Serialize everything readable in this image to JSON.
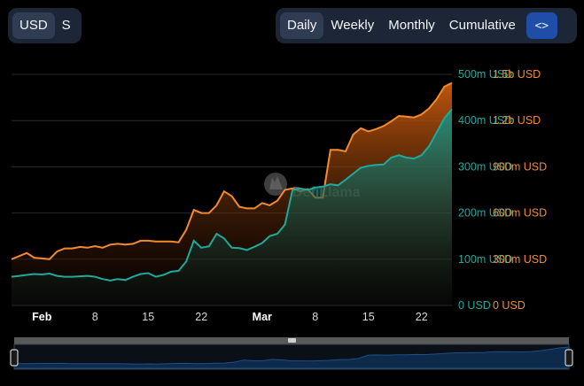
{
  "toolbar": {
    "currency": {
      "options": [
        "USD",
        "S"
      ],
      "selected": "USD"
    },
    "period": {
      "options": [
        "Daily",
        "Weekly",
        "Monthly",
        "Cumulative"
      ],
      "selected": "Daily"
    },
    "embed_icon": "code-brackets-icon",
    "embed_glyph": "<>"
  },
  "watermark": {
    "text": "DefiLlama",
    "icon": "llama-logo"
  },
  "colors": {
    "background": "#000000",
    "series_orange": "#f28a2e",
    "series_teal": "#20a89c",
    "grid": "#2a2a2a",
    "slider": "#1f4da8"
  },
  "chart_data": {
    "type": "area",
    "x": [
      "Jan 28",
      "Jan 29",
      "Jan 30",
      "Jan 31",
      "Feb 1",
      "Feb 2",
      "Feb 3",
      "Feb 4",
      "Feb 5",
      "Feb 6",
      "Feb 7",
      "Feb 8",
      "Feb 9",
      "Feb 10",
      "Feb 11",
      "Feb 12",
      "Feb 13",
      "Feb 14",
      "Feb 15",
      "Feb 16",
      "Feb 17",
      "Feb 18",
      "Feb 19",
      "Feb 20",
      "Feb 21",
      "Feb 22",
      "Feb 23",
      "Feb 24",
      "Feb 25",
      "Feb 26",
      "Feb 27",
      "Feb 28",
      "Feb 29",
      "Mar 1",
      "Mar 2",
      "Mar 3",
      "Mar 4",
      "Mar 5",
      "Mar 6",
      "Mar 7",
      "Mar 8",
      "Mar 9",
      "Mar 10",
      "Mar 11",
      "Mar 12",
      "Mar 13",
      "Mar 14",
      "Mar 15",
      "Mar 16",
      "Mar 17",
      "Mar 18",
      "Mar 19",
      "Mar 20",
      "Mar 21",
      "Mar 22",
      "Mar 23",
      "Mar 24",
      "Mar 25",
      "Mar 26"
    ],
    "x_tick_labels": [
      {
        "label": "Feb",
        "at": "Feb 1",
        "bold": true
      },
      {
        "label": "8",
        "at": "Feb 8",
        "bold": false
      },
      {
        "label": "15",
        "at": "Feb 15",
        "bold": false
      },
      {
        "label": "22",
        "at": "Feb 22",
        "bold": false
      },
      {
        "label": "Mar",
        "at": "Mar 1",
        "bold": true
      },
      {
        "label": "8",
        "at": "Mar 8",
        "bold": false
      },
      {
        "label": "15",
        "at": "Mar 15",
        "bold": false
      },
      {
        "label": "22",
        "at": "Mar 22",
        "bold": false
      }
    ],
    "axes": [
      {
        "side": "right-inner",
        "color": "#20a89c",
        "min": 0,
        "max": 500000000,
        "ticks": [
          "0 USD",
          "100m USD",
          "200m USD",
          "300m USD",
          "400m USD",
          "500m USD"
        ]
      },
      {
        "side": "right-outer",
        "color": "#f28a2e",
        "min": 0,
        "max": 1500000000,
        "ticks": [
          "0 USD",
          "300m USD",
          "600m USD",
          "900m USD",
          "1.2b USD",
          "1.5b USD"
        ]
      }
    ],
    "series": [
      {
        "axis": 1,
        "color": "#f28a2e",
        "values": [
          300,
          320,
          340,
          310,
          305,
          300,
          350,
          370,
          370,
          380,
          375,
          385,
          375,
          395,
          400,
          395,
          400,
          420,
          420,
          415,
          415,
          415,
          410,
          490,
          620,
          600,
          600,
          650,
          740,
          710,
          640,
          630,
          630,
          665,
          650,
          680,
          750,
          760,
          740,
          755,
          700,
          700,
          1010,
          1010,
          1000,
          1110,
          1150,
          1130,
          1145,
          1165,
          1195,
          1230,
          1225,
          1220,
          1240,
          1280,
          1340,
          1420,
          1445
        ]
      },
      {
        "axis": 0,
        "color": "#20a89c",
        "values": [
          62,
          64,
          66,
          68,
          67,
          69,
          64,
          62,
          62,
          63,
          64,
          62,
          57,
          54,
          57,
          55,
          62,
          68,
          70,
          62,
          66,
          73,
          75,
          95,
          140,
          125,
          128,
          155,
          145,
          125,
          124,
          120,
          127,
          135,
          150,
          155,
          175,
          250,
          253,
          250,
          255,
          257,
          262,
          260,
          272,
          285,
          298,
          302,
          304,
          305,
          320,
          325,
          320,
          318,
          325,
          345,
          375,
          405,
          425
        ]
      }
    ],
    "grid": true,
    "legend": "none"
  }
}
